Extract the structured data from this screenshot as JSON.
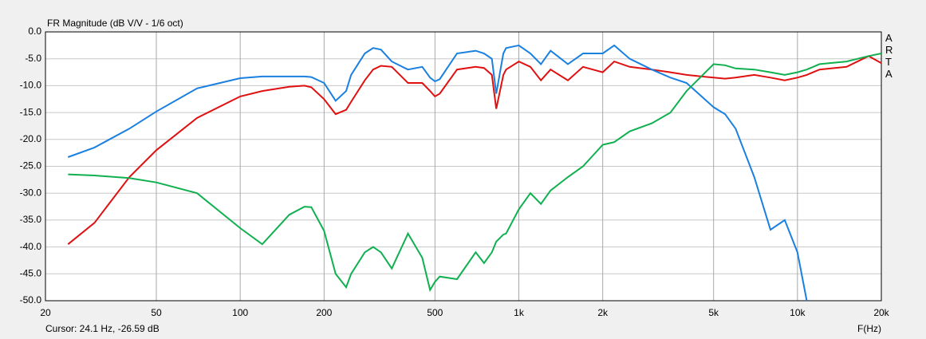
{
  "chart_data": {
    "type": "line",
    "title": "FR Magnitude (dB V/V - 1/6 oct)",
    "x_label": "F(Hz)",
    "cursor": "Cursor: 24.1 Hz, -26.59 dB",
    "watermark": "ARTA",
    "xscale": "log",
    "grid": true,
    "xlim": [
      20,
      20000
    ],
    "ylim": [
      -50,
      0
    ],
    "xticks": [
      20,
      50,
      100,
      200,
      500,
      {
        "value": 1000,
        "label": "1k"
      },
      {
        "value": 2000,
        "label": "2k"
      },
      {
        "value": 5000,
        "label": "5k"
      },
      {
        "value": 10000,
        "label": "10k"
      },
      {
        "value": 20000,
        "label": "20k"
      }
    ],
    "yticks": [
      {
        "value": 0,
        "label": "0.0"
      },
      {
        "value": -5,
        "label": "-5.0"
      },
      {
        "value": -10,
        "label": "-10.0"
      },
      {
        "value": -15,
        "label": "-15.0"
      },
      {
        "value": -20,
        "label": "-20.0"
      },
      {
        "value": -25,
        "label": "-25.0"
      },
      {
        "value": -30,
        "label": "-30.0"
      },
      {
        "value": -35,
        "label": "-35.0"
      },
      {
        "value": -40,
        "label": "-40.0"
      },
      {
        "value": -45,
        "label": "-45.0"
      },
      {
        "value": -50,
        "label": "-50.0"
      }
    ],
    "x": [
      24.1,
      30,
      40,
      50,
      70,
      100,
      120,
      150,
      170,
      180,
      200,
      220,
      240,
      250,
      280,
      300,
      320,
      350,
      400,
      450,
      480,
      500,
      520,
      600,
      700,
      750,
      800,
      830,
      880,
      900,
      1000,
      1100,
      1200,
      1300,
      1500,
      1700,
      2000,
      2200,
      2500,
      3000,
      3500,
      4000,
      5000,
      5500,
      6000,
      7000,
      8000,
      9000,
      10000,
      10800,
      12000,
      15000,
      18000,
      20000
    ],
    "series": [
      {
        "color": "#e01010",
        "values": [
          -39.5,
          -35.5,
          -27,
          -22,
          -16,
          -12,
          -11,
          -10.2,
          -10,
          -10.3,
          -12.5,
          -15.3,
          -14.5,
          -13,
          -9,
          -7,
          -6.3,
          -6.5,
          -9.5,
          -9.5,
          -11,
          -12,
          -11.5,
          -7,
          -6.5,
          -6.7,
          -8,
          -14.3,
          -8,
          -7,
          -5.5,
          -6.5,
          -9,
          -7,
          -9,
          -6.5,
          -7.5,
          -5.5,
          -6.5,
          -7,
          -7.5,
          -8,
          -8.5,
          -8.7,
          -8.5,
          -8,
          -8.5,
          -9,
          -8.5,
          -8,
          -7,
          -6.5,
          -4.5,
          -5.8
        ]
      },
      {
        "color": "#1a80e0",
        "values": [
          -23.3,
          -21.5,
          -18,
          -14.8,
          -10.5,
          -8.6,
          -8.3,
          -8.3,
          -8.3,
          -8.4,
          -9.5,
          -12.8,
          -11,
          -8,
          -4,
          -3,
          -3.3,
          -5.5,
          -7,
          -6.5,
          -8.5,
          -9.2,
          -8.8,
          -4,
          -3.5,
          -4,
          -5,
          -11.5,
          -4,
          -3,
          -2.5,
          -4,
          -6,
          -3.5,
          -6,
          -4,
          -4,
          -2.5,
          -5,
          -7,
          -8.5,
          -9.5,
          -14,
          -15.3,
          -18,
          -27,
          -36.8,
          -35,
          -41,
          -50,
          null,
          null,
          null,
          null
        ]
      },
      {
        "color": "#10b050",
        "values": [
          -26.5,
          -26.7,
          -27.2,
          -28,
          -30,
          -36.5,
          -39.5,
          -34,
          -32.5,
          -32.6,
          -37,
          -45,
          -47.5,
          -45,
          -41,
          -40,
          -41,
          -44,
          -37.5,
          -42,
          -48,
          -46.5,
          -45.5,
          -46,
          -41,
          -43,
          -41,
          -39,
          -37.7,
          -37.5,
          -33,
          -30,
          -32,
          -29.5,
          -27,
          -25,
          -21,
          -20.5,
          -18.5,
          -17,
          -15,
          -11,
          -6,
          -6.2,
          -6.8,
          -7,
          -7.5,
          -8,
          -7.5,
          -7,
          -6,
          -5.5,
          -4.5,
          -4
        ]
      }
    ]
  }
}
